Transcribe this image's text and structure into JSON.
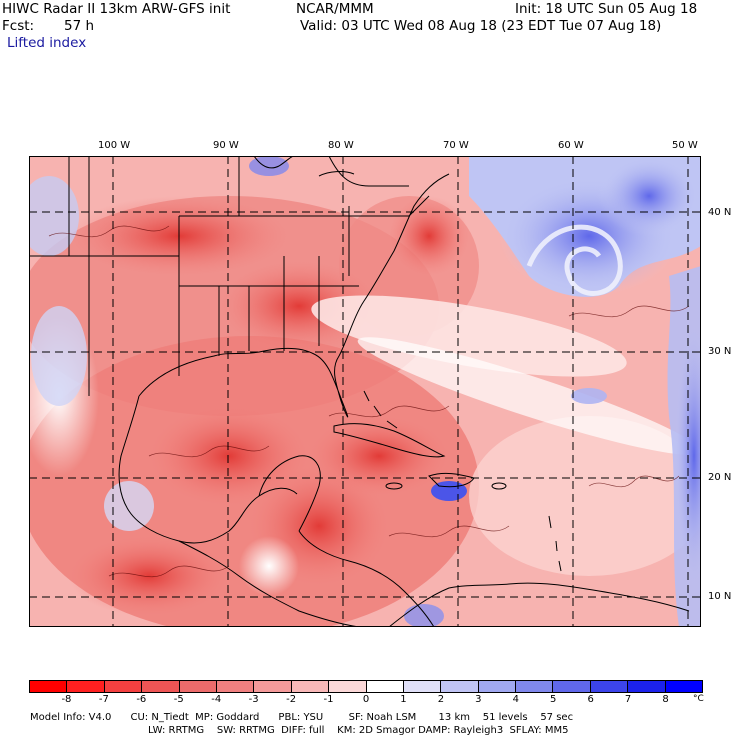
{
  "header": {
    "model_title": "HIWC Radar II 13km ARW-GFS init",
    "org": "NCAR/MMM",
    "init": "Init: 18 UTC Sun 05 Aug 18",
    "fcst_label": "Fcst:",
    "fcst_value": "57 h",
    "valid": "Valid: 03 UTC Wed 08 Aug 18 (23 EDT Tue 07 Aug 18)",
    "field": "Lifted index"
  },
  "map": {
    "lon_labels": [
      "100 W",
      "90 W",
      "80 W",
      "70 W",
      "60 W",
      "50 W"
    ],
    "lat_labels": [
      "40 N",
      "30 N",
      "20 N",
      "10 N"
    ],
    "region": "Gulf of Mexico / Caribbean / Western Atlantic",
    "colors": {
      "unstable_strong": "#e4433f",
      "unstable_weak": "#f6c4c2",
      "stable": "#6b74ea",
      "neutral": "#ffffff"
    }
  },
  "colorbar": {
    "unit": "°C",
    "labels": [
      "-8",
      "-7",
      "-6",
      "-5",
      "-4",
      "-3",
      "-2",
      "-1",
      "0",
      "1",
      "2",
      "3",
      "4",
      "5",
      "6",
      "7",
      "8"
    ],
    "colors": [
      "#ff0000",
      "#ff2020",
      "#f44040",
      "#ee5555",
      "#ec6b6b",
      "#f08080",
      "#f49a9a",
      "#f8b8b8",
      "#fbd8d8",
      "#ffffff",
      "#e0e0f8",
      "#c0c4f4",
      "#a0a8f0",
      "#8088ec",
      "#6068ea",
      "#3c44ea",
      "#1c22ec",
      "#0000ff"
    ]
  },
  "footer": {
    "line1": "Model Info: V4.0      CU: N_Tiedt  MP: Goddard      PBL: YSU        SF: Noah LSM       13 km    51 levels    57 sec",
    "line2": "LW: RRTMG    SW: RRTMG  DIFF: full    KM: 2D Smagor DAMP: Rayleigh3  SFLAY: MM5"
  }
}
